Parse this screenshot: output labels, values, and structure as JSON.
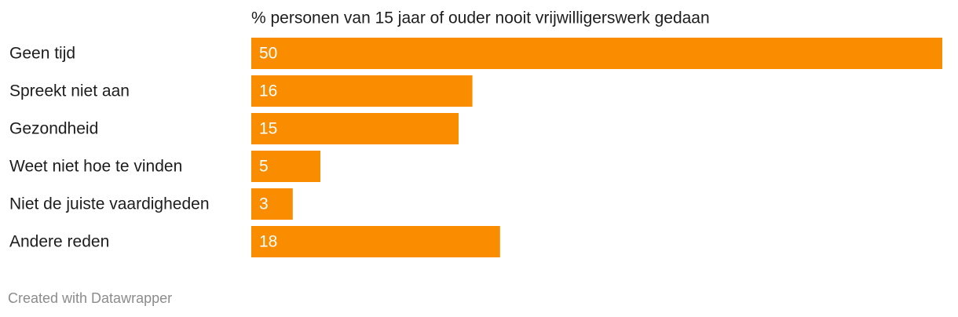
{
  "chart_data": {
    "type": "bar",
    "orientation": "horizontal",
    "title": "% personen van 15 jaar of ouder nooit vrijwilligerswerk gedaan",
    "categories": [
      "Geen tijd",
      "Spreekt niet aan",
      "Gezondheid",
      "Weet niet hoe te vinden",
      "Niet de juiste vaardigheden",
      "Andere reden"
    ],
    "values": [
      50,
      16,
      15,
      5,
      3,
      18
    ],
    "color": "#fa8c00",
    "credit": "Created with Datawrapper"
  }
}
